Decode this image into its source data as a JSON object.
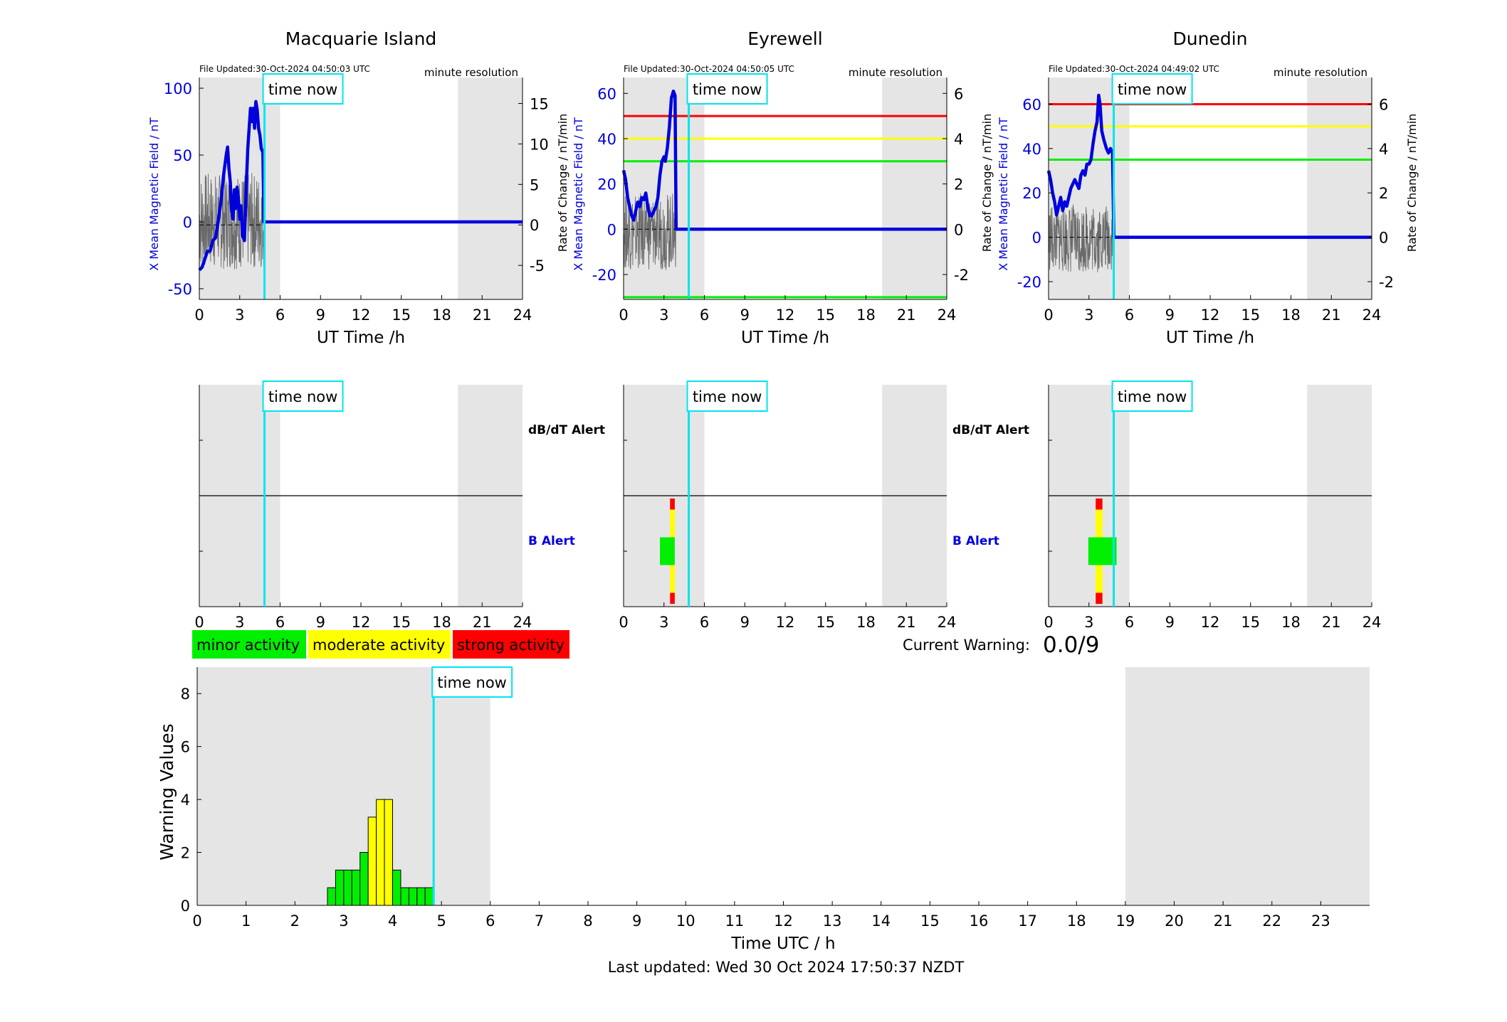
{
  "common": {
    "time_now_label": "time now",
    "time_now_hour": 4.84,
    "x_ticks": [
      0,
      3,
      6,
      9,
      12,
      15,
      18,
      21,
      24
    ],
    "night_bands": [
      [
        0,
        6
      ],
      [
        19.2,
        24
      ]
    ],
    "alert_labels": {
      "dbdt": "dB/dT Alert",
      "b": "B Alert"
    },
    "resolution_label": "minute resolution",
    "xlabel": "UT Time /h",
    "colors": {
      "magnetic": "#0000dd",
      "rate": "#555555",
      "time_now": "#00e5ee",
      "red": "#ff0000",
      "yellow": "#ffff00",
      "green": "#00ee00",
      "night": "#e5e5e5"
    }
  },
  "stations": [
    {
      "title": "Macquarie Island",
      "file_updated": "File Updated:30-Oct-2024 04:50:03 UTC",
      "ylabel_left": "X Mean Magnetic Field / nT",
      "ylabel_right": "Rate of Change / nT/min",
      "left_ylim": [
        -58,
        108
      ],
      "left_ticks": [
        -50,
        0,
        50,
        100
      ],
      "right_ylim": [
        -9.2,
        18.2
      ],
      "right_ticks": [
        -5,
        0,
        5,
        10,
        15
      ],
      "thresholds": [],
      "mag_points": [
        [
          0,
          -36
        ],
        [
          0.2,
          -34
        ],
        [
          0.4,
          -28
        ],
        [
          0.6,
          -22
        ],
        [
          0.8,
          -22
        ],
        [
          1.0,
          -14
        ],
        [
          1.2,
          -12
        ],
        [
          1.4,
          0
        ],
        [
          1.6,
          15
        ],
        [
          1.8,
          35
        ],
        [
          2.0,
          50
        ],
        [
          2.1,
          56
        ],
        [
          2.2,
          40
        ],
        [
          2.3,
          30
        ],
        [
          2.4,
          8
        ],
        [
          2.5,
          2
        ],
        [
          2.6,
          24
        ],
        [
          2.7,
          10
        ],
        [
          2.8,
          26
        ],
        [
          2.9,
          18
        ],
        [
          3.0,
          2
        ],
        [
          3.1,
          12
        ],
        [
          3.2,
          -10
        ],
        [
          3.35,
          -14
        ],
        [
          3.5,
          30
        ],
        [
          3.6,
          55
        ],
        [
          3.7,
          70
        ],
        [
          3.8,
          85
        ],
        [
          3.9,
          75
        ],
        [
          4.0,
          85
        ],
        [
          4.1,
          70
        ],
        [
          4.2,
          90
        ],
        [
          4.3,
          84
        ],
        [
          4.4,
          70
        ],
        [
          4.5,
          65
        ],
        [
          4.6,
          55
        ],
        [
          4.72,
          52
        ],
        [
          4.8,
          0
        ],
        [
          24,
          0
        ]
      ],
      "rate_span": [
        0,
        4.8,
        -5.5,
        6.5
      ],
      "dbdt_bars": [],
      "b_bars": []
    },
    {
      "title": "Eyrewell",
      "file_updated": "File Updated:30-Oct-2024 04:50:05 UTC",
      "ylabel_left": "X Mean Magnetic Field / nT",
      "ylabel_right": "Rate of Change / nT/min",
      "left_ylim": [
        -31,
        67
      ],
      "left_ticks": [
        -20,
        0,
        20,
        40,
        60
      ],
      "right_ylim": [
        -3.1,
        6.7
      ],
      "right_ticks": [
        -2,
        0,
        2,
        4,
        6
      ],
      "thresholds": [
        {
          "value": 50,
          "color": "#ff0000"
        },
        {
          "value": 40,
          "color": "#ffff00"
        },
        {
          "value": 30,
          "color": "#00ee00"
        },
        {
          "value": -30,
          "color": "#00ee00"
        }
      ],
      "mag_points": [
        [
          0,
          26
        ],
        [
          0.15,
          22
        ],
        [
          0.3,
          14
        ],
        [
          0.45,
          10
        ],
        [
          0.6,
          6
        ],
        [
          0.75,
          4
        ],
        [
          0.9,
          8
        ],
        [
          1.05,
          12
        ],
        [
          1.2,
          10
        ],
        [
          1.35,
          14
        ],
        [
          1.5,
          13
        ],
        [
          1.65,
          16
        ],
        [
          1.8,
          10
        ],
        [
          1.95,
          6
        ],
        [
          2.1,
          6
        ],
        [
          2.25,
          8
        ],
        [
          2.4,
          10
        ],
        [
          2.55,
          14
        ],
        [
          2.7,
          24
        ],
        [
          2.85,
          30
        ],
        [
          3.0,
          32
        ],
        [
          3.1,
          30
        ],
        [
          3.25,
          36
        ],
        [
          3.4,
          45
        ],
        [
          3.55,
          58
        ],
        [
          3.7,
          61
        ],
        [
          3.82,
          59
        ],
        [
          3.9,
          0
        ],
        [
          24,
          0
        ]
      ],
      "rate_span": [
        0,
        3.9,
        -1.8,
        1.6
      ],
      "dbdt_bars": [],
      "b_bars": [
        {
          "x0": 3.45,
          "x1": 3.8,
          "y0": 0.1,
          "y1": 0.5,
          "color": "#ff0000"
        },
        {
          "x0": 3.45,
          "x1": 3.8,
          "y0": 0.5,
          "y1": 1.5,
          "color": "#ffff00"
        },
        {
          "x0": 2.7,
          "x1": 3.8,
          "y0": 1.5,
          "y1": 2.5,
          "color": "#00ee00"
        },
        {
          "x0": 3.45,
          "x1": 3.8,
          "y0": 2.5,
          "y1": 3.5,
          "color": "#ffff00"
        },
        {
          "x0": 3.45,
          "x1": 3.8,
          "y0": 3.5,
          "y1": 3.9,
          "color": "#ff0000"
        }
      ]
    },
    {
      "title": "Dunedin",
      "file_updated": "File Updated:30-Oct-2024 04:49:02 UTC",
      "ylabel_left": "X Mean Magnetic Field / nT",
      "ylabel_right": "Rate of Change / nT/min",
      "left_ylim": [
        -28,
        72
      ],
      "left_ticks": [
        -20,
        0,
        20,
        40,
        60
      ],
      "right_ylim": [
        -2.8,
        7.2
      ],
      "right_ticks": [
        -2,
        0,
        2,
        4,
        6
      ],
      "thresholds": [
        {
          "value": 60,
          "color": "#ff0000"
        },
        {
          "value": 50,
          "color": "#ffff00"
        },
        {
          "value": 35,
          "color": "#00ee00"
        }
      ],
      "mag_points": [
        [
          0,
          30
        ],
        [
          0.15,
          26
        ],
        [
          0.3,
          20
        ],
        [
          0.45,
          16
        ],
        [
          0.6,
          10
        ],
        [
          0.75,
          14
        ],
        [
          0.9,
          18
        ],
        [
          1.05,
          12
        ],
        [
          1.2,
          16
        ],
        [
          1.35,
          14
        ],
        [
          1.5,
          18
        ],
        [
          1.65,
          22
        ],
        [
          1.8,
          24
        ],
        [
          1.95,
          26
        ],
        [
          2.1,
          24
        ],
        [
          2.25,
          22
        ],
        [
          2.4,
          28
        ],
        [
          2.55,
          30
        ],
        [
          2.7,
          28
        ],
        [
          2.85,
          33
        ],
        [
          3.0,
          33
        ],
        [
          3.15,
          35
        ],
        [
          3.3,
          42
        ],
        [
          3.45,
          48
        ],
        [
          3.6,
          52
        ],
        [
          3.72,
          64
        ],
        [
          3.82,
          60
        ],
        [
          3.95,
          48
        ],
        [
          4.1,
          44
        ],
        [
          4.3,
          40
        ],
        [
          4.45,
          38
        ],
        [
          4.6,
          40
        ],
        [
          4.75,
          38
        ],
        [
          4.85,
          0
        ],
        [
          24,
          0
        ]
      ],
      "rate_span": [
        0,
        4.85,
        -1.6,
        1.5
      ],
      "dbdt_bars": [],
      "b_bars": [
        {
          "x0": 3.5,
          "x1": 4.0,
          "y0": 0.1,
          "y1": 0.5,
          "color": "#ff0000"
        },
        {
          "x0": 3.5,
          "x1": 4.0,
          "y0": 0.5,
          "y1": 1.5,
          "color": "#ffff00"
        },
        {
          "x0": 2.95,
          "x1": 5.05,
          "y0": 1.5,
          "y1": 2.5,
          "color": "#00ee00"
        },
        {
          "x0": 3.5,
          "x1": 4.0,
          "y0": 2.5,
          "y1": 3.5,
          "color": "#ffff00"
        },
        {
          "x0": 3.5,
          "x1": 4.0,
          "y0": 3.5,
          "y1": 3.9,
          "color": "#ff0000"
        }
      ]
    }
  ],
  "legend": [
    {
      "label": "minor activity",
      "color": "#00ee00"
    },
    {
      "label": "moderate activity",
      "color": "#ffff00"
    },
    {
      "label": "strong activity",
      "color": "#ff0000"
    }
  ],
  "current_warning": {
    "label": "Current Warning:",
    "value": "0.0/9"
  },
  "chart_data": {
    "type": "bar",
    "ylabel": "Warning Values",
    "xlabel": "Time UTC / h",
    "xlim": [
      0,
      24
    ],
    "ylim": [
      0,
      9
    ],
    "x_ticks": [
      0,
      1,
      2,
      3,
      4,
      5,
      6,
      7,
      8,
      9,
      10,
      11,
      12,
      13,
      14,
      15,
      16,
      17,
      18,
      19,
      20,
      21,
      22,
      23
    ],
    "y_ticks": [
      0,
      2,
      4,
      6,
      8
    ],
    "night_bands": [
      [
        0,
        6
      ],
      [
        19,
        24
      ]
    ],
    "time_now_hour": 4.84,
    "bin_width": 0.1667,
    "bars": [
      {
        "start": 2.667,
        "value": 0.667,
        "color": "#00ee00"
      },
      {
        "start": 2.833,
        "value": 1.333,
        "color": "#00ee00"
      },
      {
        "start": 3.0,
        "value": 1.333,
        "color": "#00ee00"
      },
      {
        "start": 3.167,
        "value": 1.333,
        "color": "#00ee00"
      },
      {
        "start": 3.333,
        "value": 2.0,
        "color": "#00ee00"
      },
      {
        "start": 3.5,
        "value": 3.333,
        "color": "#ffff00"
      },
      {
        "start": 3.667,
        "value": 4.0,
        "color": "#ffff00"
      },
      {
        "start": 3.833,
        "value": 4.0,
        "color": "#ffff00"
      },
      {
        "start": 4.0,
        "value": 1.333,
        "color": "#00ee00"
      },
      {
        "start": 4.167,
        "value": 0.667,
        "color": "#00ee00"
      },
      {
        "start": 4.333,
        "value": 0.667,
        "color": "#00ee00"
      },
      {
        "start": 4.5,
        "value": 0.667,
        "color": "#00ee00"
      },
      {
        "start": 4.667,
        "value": 0.667,
        "color": "#00ee00"
      }
    ]
  },
  "footer": "Last updated: Wed 30 Oct 2024 17:50:37 NZDT"
}
